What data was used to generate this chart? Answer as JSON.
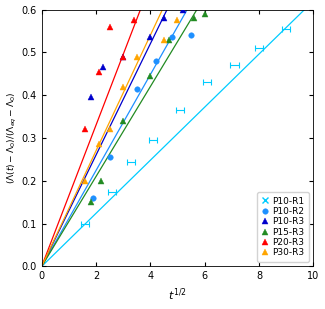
{
  "title": "",
  "xlabel": "$t^{1/2}$",
  "ylabel": "$(\\Lambda(t) - \\Lambda_0) / (\\Lambda_{eq} - \\Lambda_0)$",
  "xlim": [
    0,
    10
  ],
  "ylim": [
    0,
    0.6
  ],
  "xticks": [
    0,
    2,
    4,
    6,
    8,
    10
  ],
  "yticks": [
    0.0,
    0.1,
    0.2,
    0.3,
    0.4,
    0.5,
    0.6
  ],
  "series": [
    {
      "name": "P10-R1",
      "color": "#00CCFF",
      "marker": "x",
      "marker_size": 4,
      "slope": 0.062,
      "line_x_end": 10.0,
      "x_data": [
        1.6,
        2.6,
        3.3,
        4.1,
        5.1,
        6.1,
        7.1,
        8.0,
        9.0
      ],
      "y_data": [
        0.1,
        0.175,
        0.245,
        0.295,
        0.365,
        0.43,
        0.47,
        0.51,
        0.555
      ]
    },
    {
      "name": "P10-R2",
      "color": "#1E90FF",
      "marker": "o",
      "marker_size": 4,
      "slope": 0.112,
      "line_x_end": 5.7,
      "x_data": [
        1.9,
        2.5,
        3.5,
        4.2,
        4.8,
        5.5
      ],
      "y_data": [
        0.16,
        0.255,
        0.415,
        0.48,
        0.535,
        0.54
      ]
    },
    {
      "name": "P10-R3",
      "color": "#0000CC",
      "marker": "^",
      "marker_size": 4,
      "slope": 0.13,
      "line_x_end": 4.8,
      "x_data": [
        1.8,
        2.25,
        3.0,
        4.0,
        4.5,
        5.2
      ],
      "y_data": [
        0.395,
        0.465,
        0.49,
        0.535,
        0.58,
        0.6
      ]
    },
    {
      "name": "P15-R3",
      "color": "#228B22",
      "marker": "^",
      "marker_size": 4,
      "slope": 0.105,
      "line_x_end": 6.2,
      "x_data": [
        1.8,
        2.2,
        3.0,
        4.0,
        4.7,
        5.6,
        6.0
      ],
      "y_data": [
        0.15,
        0.2,
        0.34,
        0.445,
        0.53,
        0.58,
        0.59
      ]
    },
    {
      "name": "P20-R3",
      "color": "#FF0000",
      "marker": "^",
      "marker_size": 4,
      "slope": 0.165,
      "line_x_end": 3.85,
      "x_data": [
        1.6,
        2.1,
        2.5,
        3.0,
        3.4
      ],
      "y_data": [
        0.32,
        0.455,
        0.56,
        0.49,
        0.575
      ]
    },
    {
      "name": "P30-R3",
      "color": "#FFA500",
      "marker": "^",
      "marker_size": 4,
      "slope": 0.135,
      "line_x_end": 5.2,
      "x_data": [
        1.6,
        2.1,
        2.5,
        3.0,
        3.5,
        4.5,
        5.0
      ],
      "y_data": [
        0.2,
        0.285,
        0.32,
        0.42,
        0.49,
        0.53,
        0.575
      ]
    }
  ],
  "bg_color": "#ffffff",
  "legend_fontsize": 6.5,
  "tick_fontsize": 7,
  "label_fontsize": 8
}
